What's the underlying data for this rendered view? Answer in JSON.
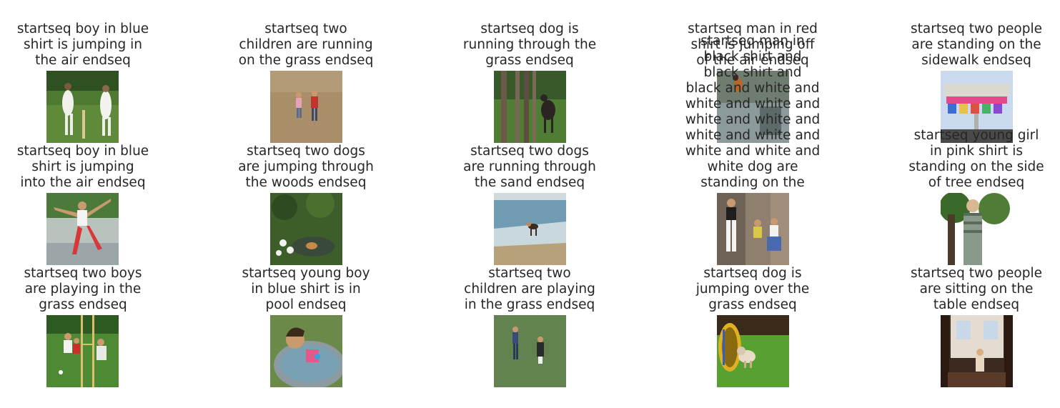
{
  "captions": [
    [
      "startseq boy in blue\nshirt is jumping in\nthe air endseq",
      "startseq two\nchildren are running\non the grass endseq",
      "startseq dog is\nrunning through the\ngrass endseq",
      "startseq man in red\nshirt is jumping off\nof the air endseq",
      "startseq two people\nare standing on the\nsidewalk endseq"
    ],
    [
      "startseq boy in blue\nshirt is jumping\ninto the air endseq",
      "startseq two dogs\nare jumping through\nthe woods endseq",
      "startseq two dogs\nare running through\nthe sand endseq",
      "startseq man in\nblack shirt and\nblack shirt and\nblack and white and\nwhite and white and\nwhite and white and\nwhite and white and\nwhite and white and\nwhite dog are\nstanding on the",
      "startseq young girl\nin pink shirt is\nstanding on the side\nof tree endseq"
    ],
    [
      "startseq two boys\nare playing in the\ngrass endseq",
      "startseq young boy\nin blue shirt is in\npool endseq",
      "startseq two\nchildren are playing\nin the grass endseq",
      "startseq dog is\njumping over the\ngrass endseq",
      "startseq two people\nare sitting on the\ntable endseq"
    ]
  ],
  "images": [
    [
      "cricket-players-photo",
      "children-on-field-photo",
      "dog-in-woods-photo",
      "dog-jumping-photo",
      "amusement-ride-photo"
    ],
    [
      "boy-in-fountain-photo",
      "dog-in-creek-photo",
      "dog-on-beach-photo",
      "people-sitting-photo",
      "person-by-tree-photo"
    ],
    [
      "boys-soccer-photo",
      "child-in-tub-photo",
      "people-on-grass-photo",
      "dog-agility-photo",
      "room-interior-photo"
    ]
  ]
}
